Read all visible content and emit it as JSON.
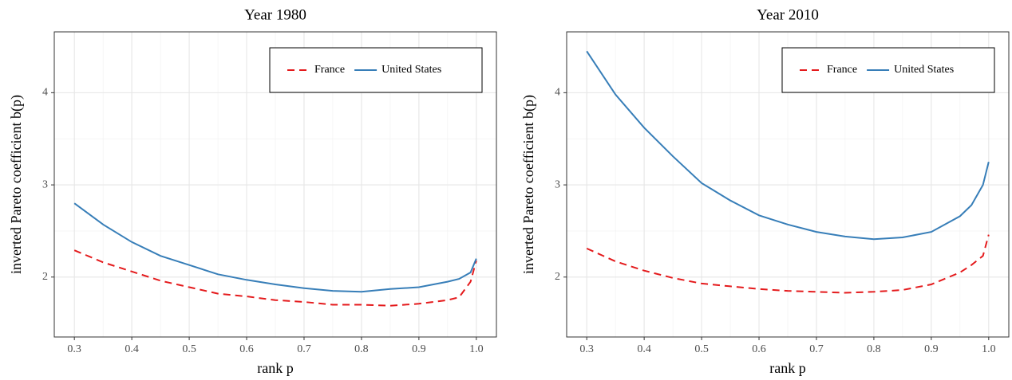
{
  "chart_data": [
    {
      "type": "line",
      "title": "Year 1980",
      "x_label": "rank p",
      "y_label": "inverted Pareto coefficient b(p)",
      "x": [
        0.3,
        0.35,
        0.4,
        0.45,
        0.5,
        0.55,
        0.6,
        0.65,
        0.7,
        0.75,
        0.8,
        0.85,
        0.9,
        0.95,
        0.97,
        0.99,
        1.0
      ],
      "series": [
        {
          "name": "France",
          "color": "#e41a1c",
          "linestyle": "dashed",
          "values": [
            2.29,
            2.16,
            2.06,
            1.96,
            1.89,
            1.82,
            1.79,
            1.75,
            1.73,
            1.7,
            1.7,
            1.69,
            1.71,
            1.75,
            1.78,
            1.95,
            2.18
          ]
        },
        {
          "name": "United States",
          "color": "#377eb8",
          "linestyle": "solid",
          "values": [
            2.8,
            2.57,
            2.38,
            2.23,
            2.13,
            2.03,
            1.97,
            1.92,
            1.88,
            1.85,
            1.84,
            1.87,
            1.89,
            1.95,
            1.98,
            2.05,
            2.2
          ]
        }
      ],
      "xlim": [
        0.265,
        1.035
      ],
      "ylim": [
        1.35,
        4.66
      ],
      "xticks": [
        0.3,
        0.4,
        0.5,
        0.6,
        0.7,
        0.8,
        0.9,
        {
          "value": 1,
          "label": "1.0"
        }
      ],
      "yticks": [
        2,
        3,
        4
      ],
      "grid": true,
      "legend": "top-right"
    },
    {
      "type": "line",
      "title": "Year 2010",
      "x_label": "rank p",
      "y_label": "inverted Pareto coefficient b(p)",
      "x": [
        0.3,
        0.35,
        0.4,
        0.45,
        0.5,
        0.55,
        0.6,
        0.65,
        0.7,
        0.75,
        0.8,
        0.85,
        0.9,
        0.95,
        0.97,
        0.99,
        1.0
      ],
      "series": [
        {
          "name": "France",
          "color": "#e41a1c",
          "linestyle": "dashed",
          "values": [
            2.31,
            2.17,
            2.07,
            1.99,
            1.93,
            1.9,
            1.87,
            1.85,
            1.84,
            1.83,
            1.84,
            1.86,
            1.92,
            2.05,
            2.13,
            2.23,
            2.46
          ]
        },
        {
          "name": "United States",
          "color": "#377eb8",
          "linestyle": "solid",
          "values": [
            4.45,
            3.98,
            3.62,
            3.31,
            3.02,
            2.83,
            2.67,
            2.57,
            2.49,
            2.44,
            2.41,
            2.43,
            2.49,
            2.66,
            2.78,
            3.0,
            3.25
          ]
        }
      ],
      "xlim": [
        0.265,
        1.035
      ],
      "ylim": [
        1.35,
        4.66
      ],
      "xticks": [
        0.3,
        0.4,
        0.5,
        0.6,
        0.7,
        0.8,
        0.9,
        {
          "value": 1,
          "label": "1.0"
        }
      ],
      "yticks": [
        2,
        3,
        4
      ],
      "grid": true,
      "legend": "top-right"
    }
  ]
}
